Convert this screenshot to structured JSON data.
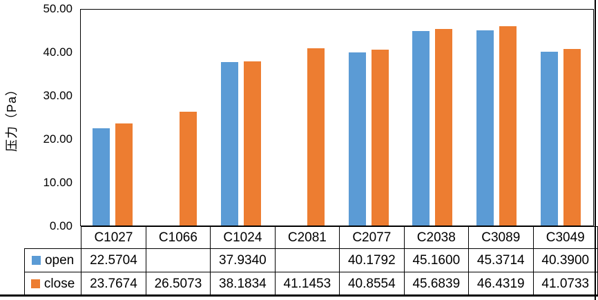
{
  "chart_data": {
    "type": "bar",
    "title": "",
    "xlabel": "",
    "ylabel": "压力（Pa）",
    "categories": [
      "C1027",
      "C1066",
      "C1024",
      "C2081",
      "C2077",
      "C2038",
      "C3089",
      "C3049"
    ],
    "series": [
      {
        "name": "open",
        "color": "#5B9BD5",
        "values": [
          22.5704,
          null,
          37.934,
          null,
          40.1792,
          45.16,
          45.3714,
          40.39
        ],
        "display": [
          "22.5704",
          "",
          "37.9340",
          "",
          "40.1792",
          "45.1600",
          "45.3714",
          "40.3900"
        ]
      },
      {
        "name": "close",
        "color": "#ED7D31",
        "values": [
          23.7674,
          26.5073,
          38.1834,
          41.1453,
          40.8554,
          45.6839,
          46.4319,
          41.0733
        ],
        "display": [
          "23.7674",
          "26.5073",
          "38.1834",
          "41.1453",
          "40.8554",
          "45.6839",
          "46.4319",
          "41.0733"
        ]
      }
    ],
    "ylim": [
      0,
      50
    ],
    "yticks": [
      0,
      10,
      20,
      30,
      40,
      50
    ],
    "ytick_labels": [
      "0.00",
      "10.00",
      "20.00",
      "30.00",
      "40.00",
      "50.00"
    ],
    "grid": false,
    "legend_position": "data-table-left",
    "plot_border_color": "#000000",
    "text_color": "#000000"
  }
}
